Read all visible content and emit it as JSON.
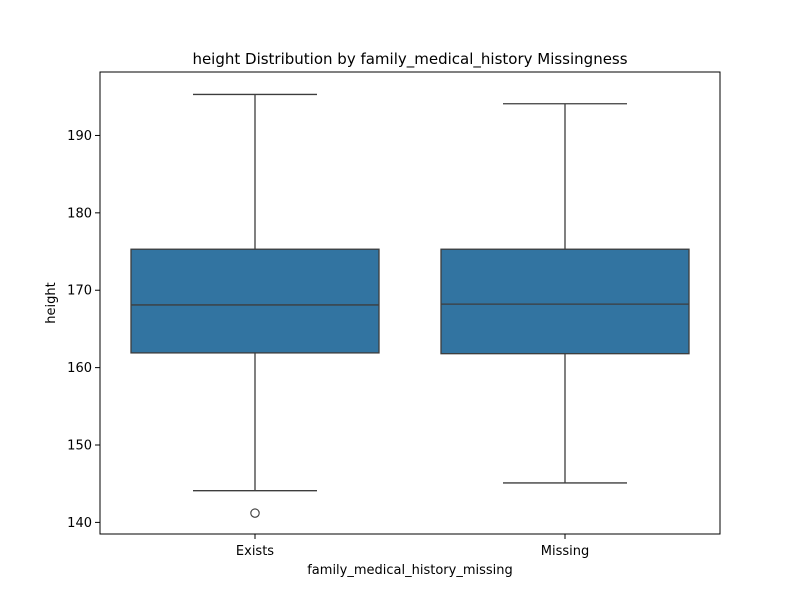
{
  "chart_data": {
    "type": "box",
    "title": "height Distribution by family_medical_history Missingness",
    "xlabel": "family_medical_history_missing",
    "ylabel": "height",
    "ylim": [
      138.5,
      198.2
    ],
    "yticks": [
      140,
      150,
      160,
      170,
      180,
      190
    ],
    "ytick_labels": [
      "140",
      "150",
      "160",
      "170",
      "180",
      "190"
    ],
    "grid": false,
    "legend": "none",
    "categories": [
      "Exists",
      "Missing"
    ],
    "boxes": [
      {
        "category": "Exists",
        "whisker_low": 144.1,
        "q1": 161.9,
        "median": 168.1,
        "q3": 175.3,
        "whisker_high": 195.3,
        "outliers": [
          141.2
        ]
      },
      {
        "category": "Missing",
        "whisker_low": 145.1,
        "q1": 161.8,
        "median": 168.2,
        "q3": 175.3,
        "whisker_high": 194.1,
        "outliers": []
      }
    ],
    "colors": {
      "box_fill": "#3274a1",
      "line": "#3d3d3d",
      "axis": "#000000"
    }
  }
}
